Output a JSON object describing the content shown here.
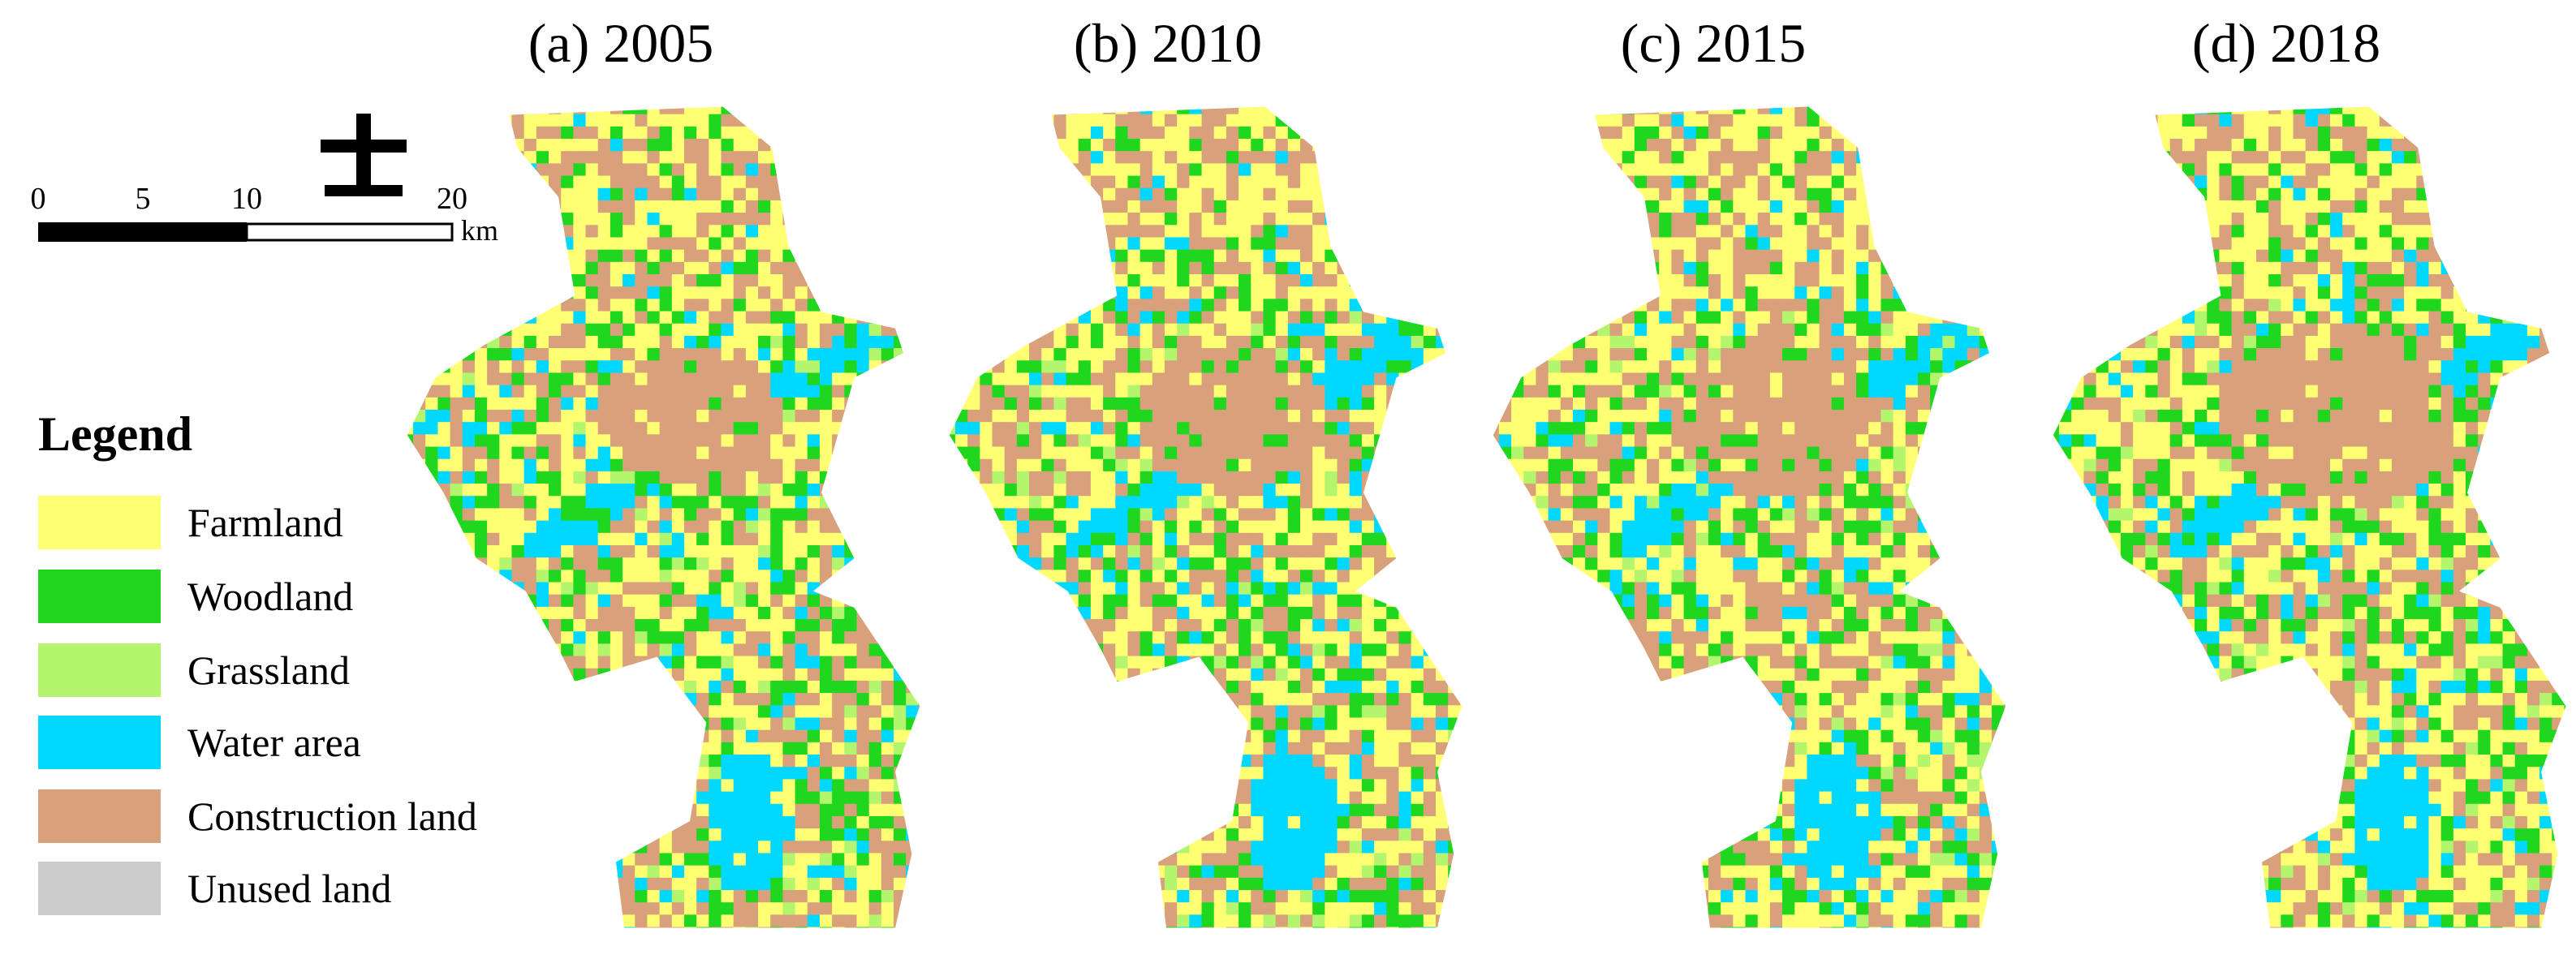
{
  "panels": [
    {
      "title": "(a) 2005"
    },
    {
      "title": "(b) 2010"
    },
    {
      "title": "(c) 2015"
    },
    {
      "title": "(d) 2018"
    }
  ],
  "scale_bar": {
    "labels": [
      "0",
      "5",
      "10",
      "20"
    ],
    "unit": "km"
  },
  "legend": {
    "title": "Legend",
    "items": [
      {
        "label": "Farmland",
        "color": "#ffff73"
      },
      {
        "label": "Woodland",
        "color": "#1ed71e"
      },
      {
        "label": "Grassland",
        "color": "#b4f56e"
      },
      {
        "label": "Water area",
        "color": "#00d8ff"
      },
      {
        "label": "Construction land",
        "color": "#d9a07c"
      },
      {
        "label": "Unused land",
        "color": "#cccccc"
      }
    ]
  }
}
